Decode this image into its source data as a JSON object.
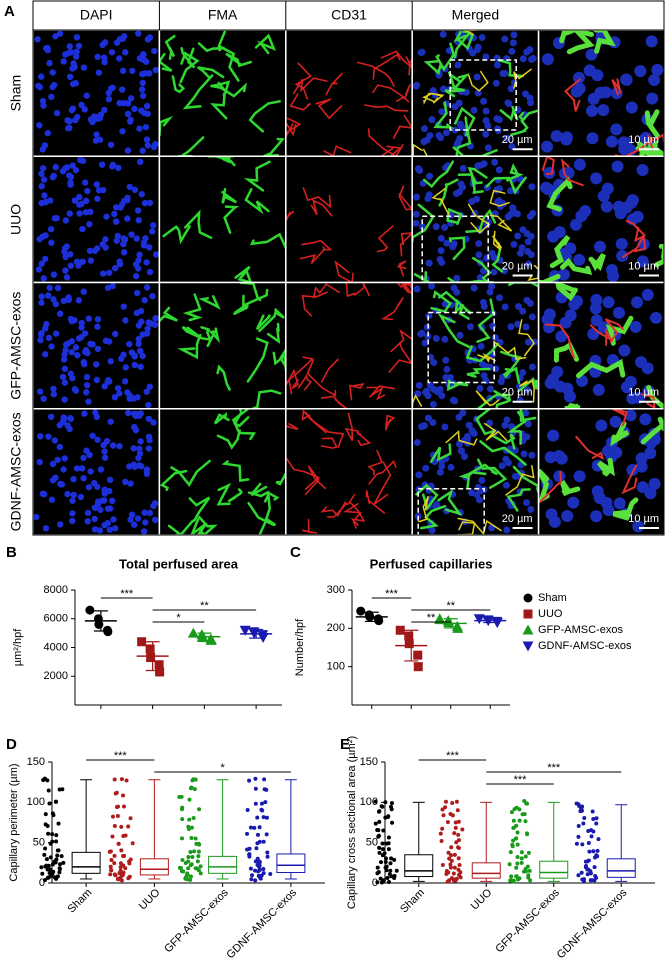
{
  "panel_a": {
    "label": "A",
    "columns": [
      "DAPI",
      "FMA",
      "CD31",
      "Merged"
    ],
    "rows": [
      {
        "label": "Sham",
        "scale": "20 µm",
        "zoom_scale": "10 µm"
      },
      {
        "label": "UUO",
        "scale": "20 µm",
        "zoom_scale": "10 µm"
      },
      {
        "label": "GFP-AMSC-exos",
        "scale": "20 µm",
        "zoom_scale": "10 µm"
      },
      {
        "label": "GDNF-AMSC-exos",
        "scale": "20 µm",
        "zoom_scale": "10 µm"
      }
    ]
  },
  "chart_data": [
    {
      "type": "dot",
      "panel": "B",
      "title": "Total perfused area",
      "y_label": "µm²/hpf",
      "ylim": [
        0,
        8000
      ],
      "yticks": [
        2000,
        4000,
        6000,
        8000
      ],
      "series": [
        {
          "color": "#000000",
          "marker": "circle",
          "values": [
            6600,
            6000,
            5600,
            5200,
            5100
          ],
          "mean": 5850,
          "sd": 700
        },
        {
          "color": "#a01818",
          "marker": "square",
          "values": [
            4400,
            3900,
            3300,
            2800,
            2300
          ],
          "mean": 3400,
          "sd": 1000
        },
        {
          "color": "#1a9a1a",
          "marker": "triangle",
          "values": [
            5000,
            4900,
            4700,
            4600,
            4500
          ],
          "mean": 4750,
          "sd": 250
        },
        {
          "color": "#1a1ab0",
          "marker": "triangle-down",
          "values": [
            5200,
            5100,
            5000,
            4900,
            4700
          ],
          "mean": 4950,
          "sd": 300
        }
      ],
      "annotations": [
        {
          "from": 0,
          "to": 1,
          "label": "***"
        },
        {
          "from": 1,
          "to": 3,
          "label": "**"
        },
        {
          "from": 1,
          "to": 2,
          "label": "*"
        }
      ]
    },
    {
      "type": "dot",
      "panel": "C",
      "title": "Perfused capillaries",
      "y_label": "Number/hpf",
      "ylim": [
        0,
        300
      ],
      "yticks": [
        100,
        200,
        300
      ],
      "legend": "right",
      "series": [
        {
          "name": "Sham",
          "color": "#000000",
          "marker": "circle",
          "values": [
            245,
            235,
            230,
            225,
            220
          ],
          "mean": 230,
          "sd": 12
        },
        {
          "name": "UUO",
          "color": "#a01818",
          "marker": "square",
          "values": [
            195,
            180,
            160,
            130,
            100
          ],
          "mean": 155,
          "sd": 40
        },
        {
          "name": "GFP-AMSC-exos",
          "color": "#1a9a1a",
          "marker": "triangle",
          "values": [
            225,
            220,
            215,
            205,
            200
          ],
          "mean": 213,
          "sd": 12
        },
        {
          "name": "GDNF-AMSC-exos",
          "color": "#1a1ab0",
          "marker": "triangle-down",
          "values": [
            225,
            222,
            220,
            218,
            215
          ],
          "mean": 220,
          "sd": 5
        }
      ],
      "annotations": [
        {
          "from": 0,
          "to": 1,
          "label": "***"
        },
        {
          "from": 1,
          "to": 3,
          "label": "**"
        },
        {
          "from": 1,
          "to": 2,
          "label": "**"
        }
      ]
    },
    {
      "type": "box",
      "panel": "D",
      "y_label": "Capillary perimeter (µm)",
      "ylim": [
        0,
        150
      ],
      "yticks": [
        0,
        50,
        100,
        150
      ],
      "categories": [
        "Sham",
        "UUO",
        "GFP-AMSC-exos",
        "GDNF-AMSC-exos"
      ],
      "colors": [
        "#000000",
        "#b01c1c",
        "#1a9a1a",
        "#1a1ab0"
      ],
      "boxes": [
        {
          "min": 5,
          "q1": 12,
          "median": 20,
          "q3": 38,
          "max": 128,
          "points": [
            5,
            8,
            10,
            12,
            15,
            18,
            20,
            22,
            25,
            30,
            35,
            42,
            50,
            60,
            72,
            85,
            100,
            115,
            128
          ]
        },
        {
          "min": 5,
          "q1": 10,
          "median": 17,
          "q3": 30,
          "max": 128,
          "points": [
            5,
            7,
            9,
            11,
            14,
            17,
            20,
            24,
            28,
            33,
            40,
            48,
            58,
            70,
            82,
            95,
            110,
            128
          ]
        },
        {
          "min": 5,
          "q1": 12,
          "median": 20,
          "q3": 33,
          "max": 128,
          "points": [
            5,
            8,
            11,
            14,
            17,
            20,
            24,
            28,
            33,
            40,
            48,
            57,
            68,
            80,
            92,
            105,
            118,
            128
          ]
        },
        {
          "min": 5,
          "q1": 13,
          "median": 22,
          "q3": 36,
          "max": 128,
          "points": [
            5,
            8,
            11,
            15,
            19,
            22,
            26,
            31,
            36,
            43,
            51,
            60,
            70,
            80,
            90,
            100,
            115,
            128
          ]
        }
      ],
      "annotations": [
        {
          "from": 0,
          "to": 1,
          "label": "***"
        },
        {
          "from": 1,
          "to": 3,
          "label": "*"
        }
      ]
    },
    {
      "type": "box",
      "panel": "E",
      "y_label": "Capillary cross sectional area (µm²)",
      "ylim": [
        0,
        150
      ],
      "yticks": [
        0,
        50,
        100,
        150
      ],
      "categories": [
        "Sham",
        "UUO",
        "GFP-AMSC-exos",
        "GDNF-AMSC-exos"
      ],
      "colors": [
        "#000000",
        "#b01c1c",
        "#1a9a1a",
        "#1a1ab0"
      ],
      "boxes": [
        {
          "min": 2,
          "q1": 8,
          "median": 15,
          "q3": 35,
          "max": 100,
          "points": [
            2,
            5,
            8,
            12,
            16,
            20,
            25,
            30,
            36,
            42,
            50,
            58,
            66,
            74,
            82,
            90,
            96,
            100
          ]
        },
        {
          "min": 2,
          "q1": 6,
          "median": 12,
          "q3": 25,
          "max": 100,
          "points": [
            2,
            4,
            7,
            10,
            14,
            18,
            23,
            29,
            36,
            44,
            52,
            60,
            68,
            76,
            84,
            92,
            100
          ]
        },
        {
          "min": 2,
          "q1": 6,
          "median": 13,
          "q3": 27,
          "max": 100,
          "points": [
            2,
            4,
            7,
            10,
            14,
            19,
            25,
            31,
            38,
            46,
            54,
            62,
            70,
            78,
            86,
            93,
            100
          ]
        },
        {
          "min": 2,
          "q1": 7,
          "median": 15,
          "q3": 30,
          "max": 97,
          "points": [
            2,
            5,
            8,
            12,
            16,
            21,
            27,
            33,
            40,
            48,
            56,
            64,
            72,
            80,
            88,
            94,
            97
          ]
        }
      ],
      "annotations": [
        {
          "from": 0,
          "to": 1,
          "label": "***"
        },
        {
          "from": 1,
          "to": 3,
          "label": "***"
        },
        {
          "from": 1,
          "to": 2,
          "label": "***"
        }
      ]
    }
  ]
}
